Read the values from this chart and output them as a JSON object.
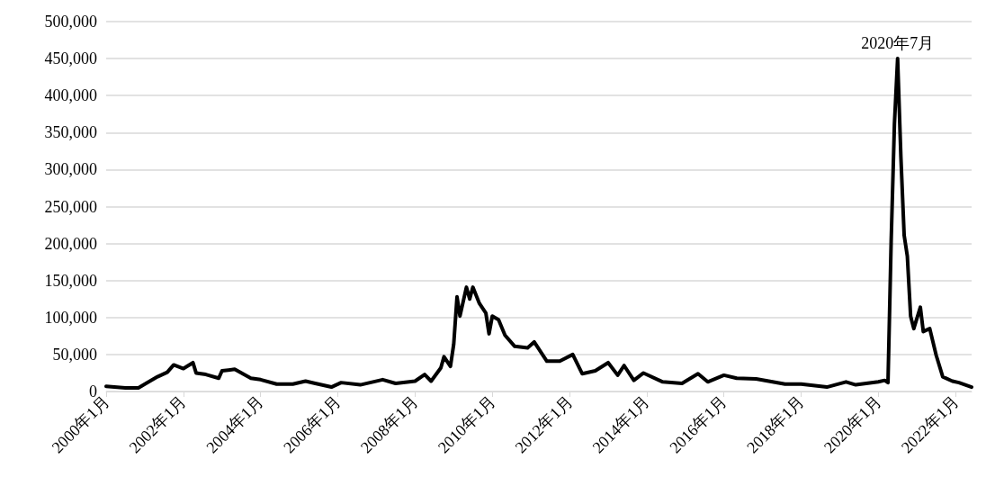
{
  "chart_data": {
    "type": "line",
    "x": [
      "2000-01",
      "2000-07",
      "2000-11",
      "2001-01",
      "2001-05",
      "2001-08",
      "2001-10",
      "2002-01",
      "2002-04",
      "2002-05",
      "2002-08",
      "2002-12",
      "2003-01",
      "2003-05",
      "2003-10",
      "2004-01",
      "2004-06",
      "2004-11",
      "2005-03",
      "2005-06",
      "2005-11",
      "2006-02",
      "2006-08",
      "2007-03",
      "2007-07",
      "2008-01",
      "2008-04",
      "2008-06",
      "2008-09",
      "2008-10",
      "2008-12",
      "2009-01",
      "2009-02",
      "2009-03",
      "2009-05",
      "2009-06",
      "2009-07",
      "2009-09",
      "2009-11",
      "2009-12",
      "2010-01",
      "2010-03",
      "2010-05",
      "2010-08",
      "2010-12",
      "2011-02",
      "2011-06",
      "2011-10",
      "2012-02",
      "2012-05",
      "2012-09",
      "2013-01",
      "2013-04",
      "2013-06",
      "2013-09",
      "2013-12",
      "2014-06",
      "2014-12",
      "2015-05",
      "2015-08",
      "2016-01",
      "2016-05",
      "2016-11",
      "2017-08",
      "2018-01",
      "2018-09",
      "2019-03",
      "2019-06",
      "2020-01",
      "2020-03",
      "2020-04",
      "2020-05",
      "2020-06",
      "2020-07",
      "2020-08",
      "2020-09",
      "2020-10",
      "2020-11",
      "2020-12",
      "2021-02",
      "2021-03",
      "2021-05",
      "2021-07",
      "2021-09",
      "2021-12",
      "2022-02",
      "2022-06"
    ],
    "series": [
      {
        "color": "#000000",
        "values": [
          7000,
          5000,
          5000,
          10000,
          20000,
          26000,
          36000,
          31000,
          39000,
          25000,
          23000,
          18000,
          28000,
          30000,
          18000,
          16000,
          10000,
          10000,
          14000,
          11000,
          6000,
          12000,
          9000,
          16000,
          11000,
          14000,
          23000,
          14000,
          32000,
          47000,
          34000,
          64000,
          128000,
          102000,
          141000,
          125000,
          141000,
          119000,
          106000,
          78000,
          102000,
          97000,
          76000,
          61000,
          59000,
          67000,
          41000,
          41000,
          50000,
          24000,
          28000,
          39000,
          22000,
          35000,
          15000,
          25000,
          13000,
          11000,
          24000,
          13000,
          22000,
          18000,
          17000,
          10000,
          10000,
          6000,
          13000,
          9000,
          13000,
          15000,
          12000,
          203000,
          362000,
          450000,
          317000,
          211000,
          183000,
          102000,
          85000,
          114000,
          81000,
          85000,
          49000,
          20000,
          14000,
          12000,
          6000
        ]
      }
    ],
    "xlim": [
      "2000-01",
      "2022-06"
    ],
    "xticks": [
      {
        "value": "2000-01",
        "label": "2000年1月"
      },
      {
        "value": "2002-01",
        "label": "2002年1月"
      },
      {
        "value": "2004-01",
        "label": "2004年1月"
      },
      {
        "value": "2006-01",
        "label": "2006年1月"
      },
      {
        "value": "2008-01",
        "label": "2008年1月"
      },
      {
        "value": "2010-01",
        "label": "2010年1月"
      },
      {
        "value": "2012-01",
        "label": "2012年1月"
      },
      {
        "value": "2014-01",
        "label": "2014年1月"
      },
      {
        "value": "2016-01",
        "label": "2016年1月"
      },
      {
        "value": "2018-01",
        "label": "2018年1月"
      },
      {
        "value": "2020-01",
        "label": "2020年1月"
      },
      {
        "value": "2022-01",
        "label": "2022年1月"
      }
    ],
    "ylim": [
      0,
      500000
    ],
    "yticks": [
      {
        "value": 0,
        "label": "0"
      },
      {
        "value": 50000,
        "label": "50,000"
      },
      {
        "value": 100000,
        "label": "100,000"
      },
      {
        "value": 150000,
        "label": "150,000"
      },
      {
        "value": 200000,
        "label": "200,000"
      },
      {
        "value": 250000,
        "label": "250,000"
      },
      {
        "value": 300000,
        "label": "300,000"
      },
      {
        "value": 350000,
        "label": "350,000"
      },
      {
        "value": 400000,
        "label": "400,000"
      },
      {
        "value": 450000,
        "label": "450,000"
      },
      {
        "value": 500000,
        "label": "500,000"
      }
    ],
    "annotations": [
      {
        "text": "2020年7月",
        "x": "2020-07",
        "y": 450000
      }
    ],
    "grid": "y",
    "marker": "none"
  }
}
